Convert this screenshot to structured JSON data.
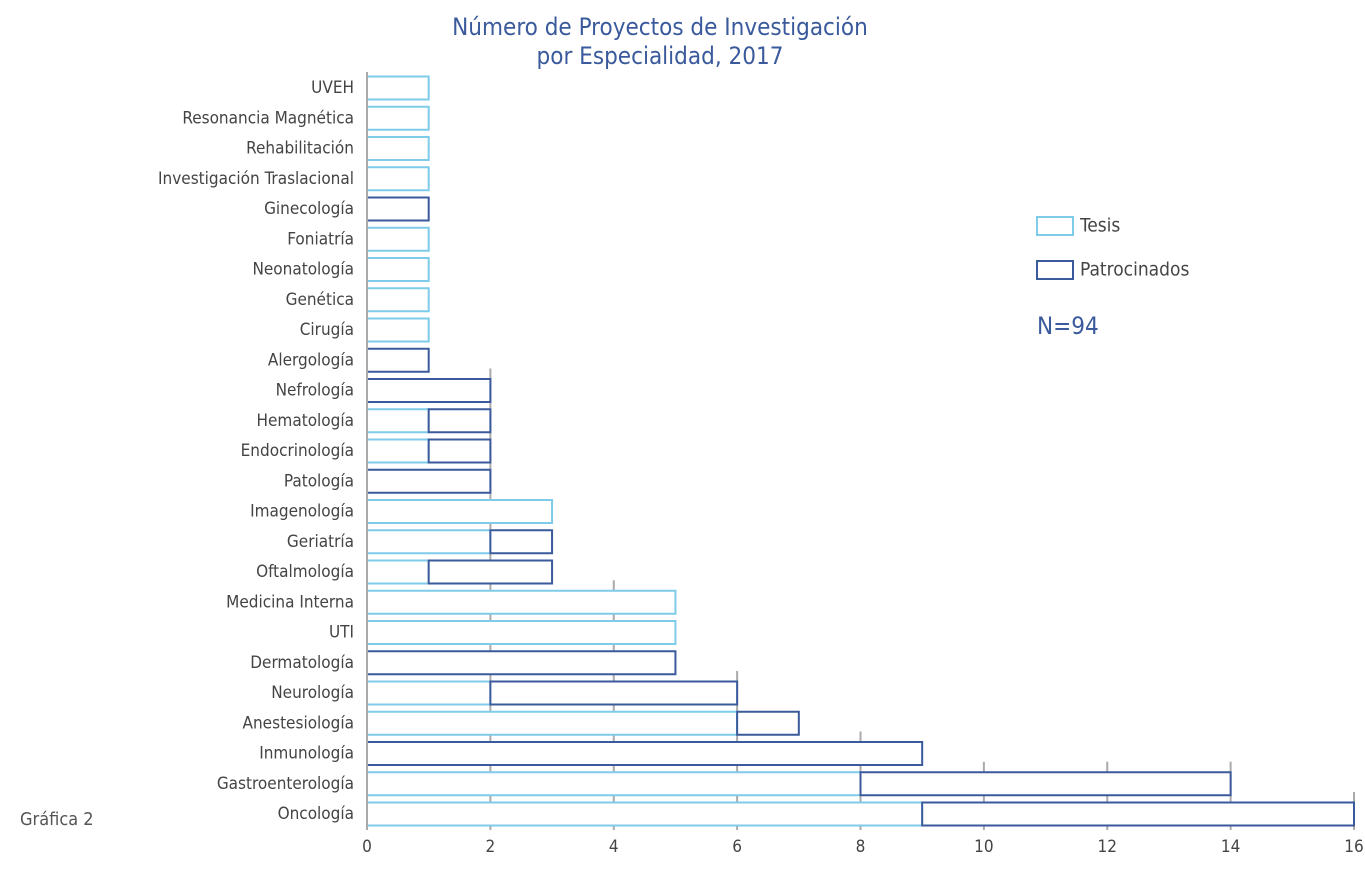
{
  "chart_data": {
    "type": "hbar_stacked",
    "title": [
      "Número de Proyectos de Investigación",
      "por Especialidad, 2017"
    ],
    "categories": [
      "UVEH",
      "Resonancia Magnética",
      "Rehabilitación",
      "Investigación Traslacional",
      "Ginecología",
      "Foniatría",
      "Neonatología",
      "Genética",
      "Cirugía",
      "Alergología",
      "Nefrología",
      "Hematología",
      "Endocrinología",
      "Patología",
      "Imagenología",
      "Geriatría",
      "Oftalmología",
      "Medicina Interna",
      "UTI",
      "Dermatología",
      "Neurología",
      "Anestesiología",
      "Inmunología",
      "Gastroenterología",
      "Oncología"
    ],
    "series": [
      {
        "name": "Tesis",
        "color": "#7ecbea",
        "values": [
          1,
          1,
          1,
          1,
          0,
          1,
          1,
          1,
          1,
          0,
          0,
          1,
          1,
          0,
          3,
          2,
          1,
          5,
          5,
          0,
          2,
          6,
          0,
          8,
          9
        ]
      },
      {
        "name": "Patrocinados",
        "color": "#3a5a9c",
        "values": [
          0,
          0,
          0,
          0,
          1,
          0,
          0,
          0,
          0,
          1,
          2,
          1,
          1,
          2,
          0,
          1,
          2,
          0,
          0,
          5,
          4,
          1,
          9,
          6,
          7
        ]
      }
    ],
    "xlim": [
      0,
      16
    ],
    "xticks": [
      0,
      2,
      4,
      6,
      8,
      10,
      12,
      14,
      16
    ],
    "grid": true,
    "annotations": [
      "N=94",
      "Gráfica 2"
    ]
  }
}
